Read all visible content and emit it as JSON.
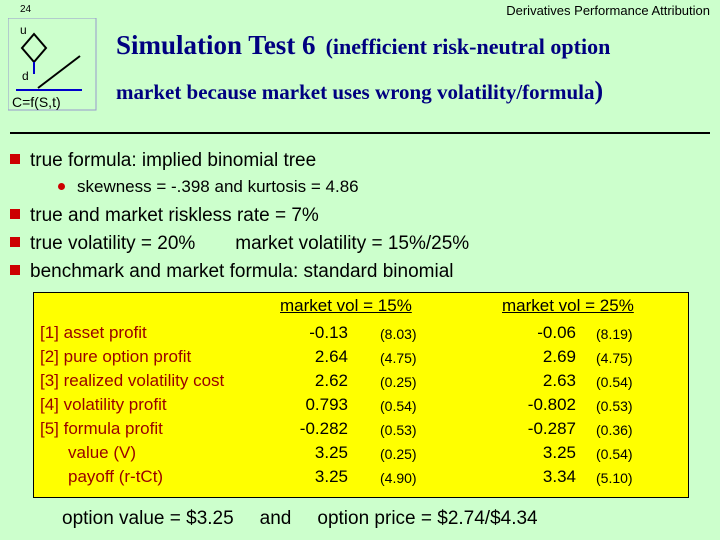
{
  "header": {
    "page_number": "24",
    "course_title": "Derivatives Performance Attribution"
  },
  "logo": {
    "upper": "u",
    "lower": "d",
    "formula": "C=f(S,t)"
  },
  "title": {
    "main": "Simulation Test 6",
    "paren_open": "(inefficient risk-neutral option",
    "line2": "market because market uses wrong volatility/formula",
    "paren_close": ")"
  },
  "bullets": {
    "b1": "true formula:  implied binomial tree",
    "b1_sub": "skewness  =  -.398    and    kurtosis  =  4.86",
    "b2": "true and market riskless rate  =  7%",
    "b3_a": "true volatility  =  20%",
    "b3_b": "market volatility  =  15%/25%",
    "b4": "benchmark and market formula:  standard binomial"
  },
  "table": {
    "col1_header": "market vol = 15%",
    "col2_header": "market vol = 25%",
    "rows": [
      {
        "label": "[1] asset profit",
        "v1": "-0.13",
        "s1": "(8.03)",
        "v2": "-0.06",
        "s2": "(8.19)"
      },
      {
        "label": "[2] pure option profit",
        "v1": "2.64",
        "s1": "(4.75)",
        "v2": "2.69",
        "s2": "(4.75)"
      },
      {
        "label": "[3] realized volatility cost",
        "v1": "2.62",
        "s1": "(0.25)",
        "v2": "2.63",
        "s2": "(0.54)"
      },
      {
        "label": "[4] volatility profit",
        "v1": "0.793",
        "s1": "(0.54)",
        "v2": "-0.802",
        "s2": "(0.53)"
      },
      {
        "label": "[5] formula profit",
        "v1": "-0.282",
        "s1": "(0.53)",
        "v2": "-0.287",
        "s2": "(0.36)"
      },
      {
        "label": "value (V)",
        "v1": "3.25",
        "s1": "(0.25)",
        "v2": "3.25",
        "s2": "(0.54)"
      },
      {
        "label": "payoff (r-tCt)",
        "v1": "3.25",
        "s1": "(4.90)",
        "v2": "3.34",
        "s2": "(5.10)"
      }
    ]
  },
  "footer": {
    "part1": "option value  =  $3.25",
    "part2": "and",
    "part3": "option price  =  $2.74/$4.34"
  },
  "colors": {
    "background": "#CCFFCC",
    "title": "#000080",
    "bullet": "#CC0000",
    "table_bg": "#FFFF00",
    "row_label": "#990000"
  }
}
